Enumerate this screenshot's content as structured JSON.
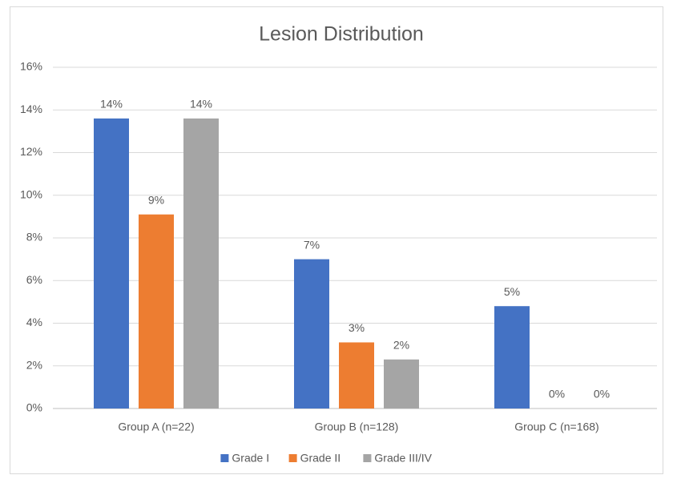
{
  "chart_data": {
    "type": "bar",
    "title": "Lesion Distribution",
    "categories": [
      "Group A (n=22)",
      "Group B (n=128)",
      "Group C (n=168)"
    ],
    "series": [
      {
        "name": "Grade I",
        "color": "#4472c4",
        "values": [
          13.6,
          7.0,
          4.8
        ],
        "value_labels": [
          "14%",
          "7%",
          "5%"
        ]
      },
      {
        "name": "Grade II",
        "color": "#ed7d31",
        "values": [
          9.1,
          3.1,
          0
        ],
        "value_labels": [
          "9%",
          "3%",
          "0%"
        ]
      },
      {
        "name": "Grade III/IV",
        "color": "#a5a5a5",
        "values": [
          13.6,
          2.3,
          0
        ],
        "value_labels": [
          "14%",
          "2%",
          "0%"
        ]
      }
    ],
    "ylim": [
      0,
      16
    ],
    "yticks": [
      {
        "value": 0,
        "label": "0%"
      },
      {
        "value": 2,
        "label": "2%"
      },
      {
        "value": 4,
        "label": "4%"
      },
      {
        "value": 6,
        "label": "6%"
      },
      {
        "value": 8,
        "label": "8%"
      },
      {
        "value": 10,
        "label": "10%"
      },
      {
        "value": 12,
        "label": "12%"
      },
      {
        "value": 14,
        "label": "14%"
      },
      {
        "value": 16,
        "label": "16%"
      }
    ],
    "grid": true,
    "legend": "bottom"
  }
}
